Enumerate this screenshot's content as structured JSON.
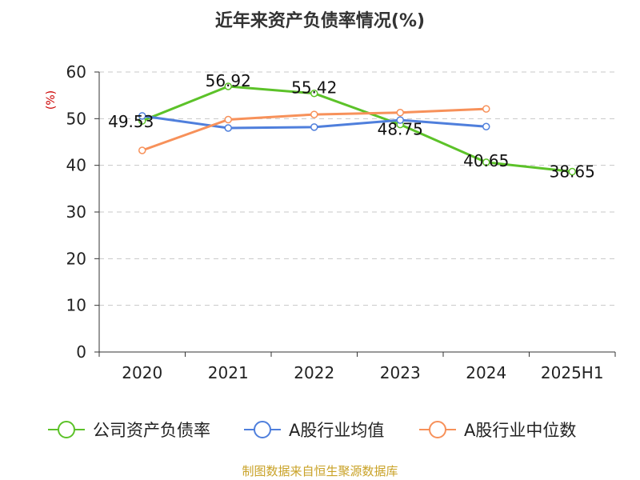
{
  "chart_data": {
    "type": "line",
    "title": "近年来资产负债率情况(%)",
    "unit_label": "(%)",
    "categories": [
      "2020",
      "2021",
      "2022",
      "2023",
      "2024",
      "2025H1"
    ],
    "y_ticks": [
      "0",
      "10",
      "20",
      "30",
      "40",
      "50",
      "60"
    ],
    "ylim": [
      0,
      60
    ],
    "grid": true,
    "legend_position": "bottom",
    "series": [
      {
        "name": "公司资产负债率",
        "color": "#5cc229",
        "values": [
          49.53,
          56.92,
          55.42,
          48.75,
          40.65,
          38.65
        ],
        "labels": [
          "49.53",
          "56.92",
          "55.42",
          "48.75",
          "40.65",
          "38.65"
        ]
      },
      {
        "name": "A股行业均值",
        "color": "#4f7fdc",
        "values": [
          50.6,
          48.0,
          48.2,
          49.7,
          48.3,
          null
        ],
        "labels": []
      },
      {
        "name": "A股行业中位数",
        "color": "#f7915a",
        "values": [
          43.2,
          49.8,
          50.9,
          51.3,
          52.1,
          null
        ],
        "labels": []
      }
    ]
  },
  "source": "制图数据来自恒生聚源数据库"
}
